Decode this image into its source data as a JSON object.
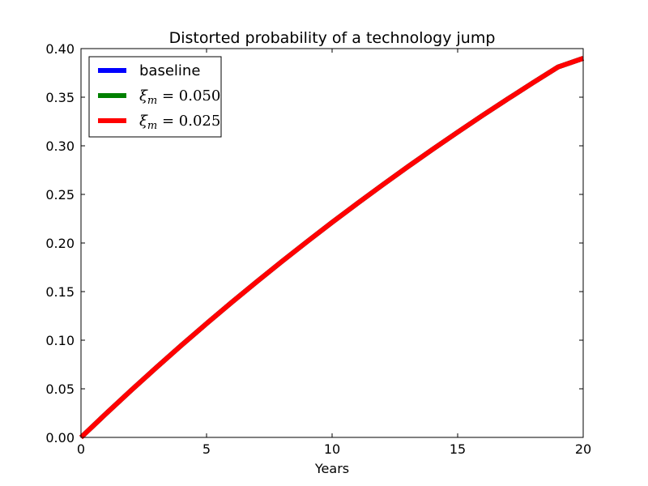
{
  "chart_data": {
    "type": "line",
    "title": "Distorted probability of a technology jump",
    "xlabel": "Years",
    "ylabel": "",
    "xlim": [
      0,
      20
    ],
    "ylim": [
      0,
      0.4
    ],
    "xticks": [
      0,
      5,
      10,
      15,
      20
    ],
    "xtick_labels": [
      "0",
      "5",
      "10",
      "15",
      "20"
    ],
    "yticks": [
      0,
      0.05,
      0.1,
      0.15,
      0.2,
      0.25,
      0.3,
      0.35,
      0.4
    ],
    "ytick_labels": [
      "0.00",
      "0.05",
      "0.10",
      "0.15",
      "0.20",
      "0.25",
      "0.30",
      "0.35",
      "0.40"
    ],
    "grid": false,
    "legend_position": "top-left",
    "x": [
      0,
      1,
      2,
      3,
      4,
      5,
      6,
      7,
      8,
      9,
      10,
      11,
      12,
      13,
      14,
      15,
      16,
      17,
      18,
      19,
      20
    ],
    "series": [
      {
        "name": "baseline",
        "legend_prefix": "",
        "legend_math": "",
        "color": "#0000ff",
        "values": [
          0.0,
          0.0245,
          0.0485,
          0.0719,
          0.0948,
          0.1171,
          0.1389,
          0.1602,
          0.181,
          0.2013,
          0.2212,
          0.2406,
          0.2596,
          0.2782,
          0.2963,
          0.314,
          0.3314,
          0.3483,
          0.3649,
          0.3811,
          0.39
        ]
      },
      {
        "name": "ξm = 0.050",
        "legend_prefix": "ξ",
        "legend_math": "m = 0.050",
        "color": "#008000",
        "values": [
          0.0,
          0.0245,
          0.0485,
          0.0719,
          0.0948,
          0.1171,
          0.1389,
          0.1602,
          0.181,
          0.2013,
          0.2212,
          0.2406,
          0.2596,
          0.2782,
          0.2963,
          0.314,
          0.3314,
          0.3483,
          0.3649,
          0.3811,
          0.39
        ]
      },
      {
        "name": "ξm = 0.025",
        "legend_prefix": "ξ",
        "legend_math": "m = 0.025",
        "color": "#ff0000",
        "values": [
          0.0,
          0.0245,
          0.0485,
          0.0719,
          0.0948,
          0.1171,
          0.1389,
          0.1602,
          0.181,
          0.2013,
          0.2212,
          0.2406,
          0.2596,
          0.2782,
          0.2963,
          0.314,
          0.3314,
          0.3483,
          0.3649,
          0.3811,
          0.39
        ]
      }
    ]
  }
}
